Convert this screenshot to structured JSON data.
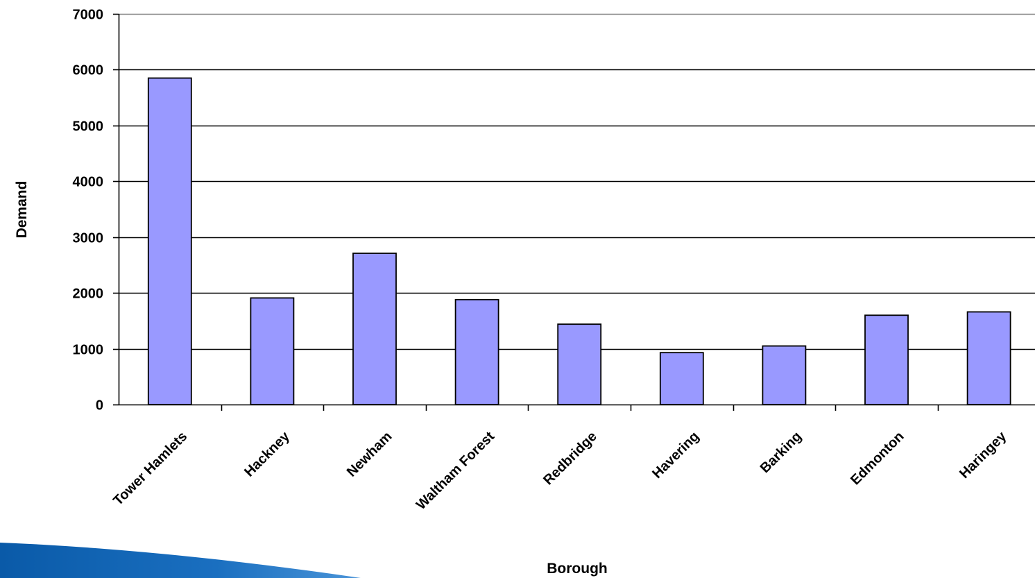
{
  "chart_data": {
    "type": "bar",
    "title": "",
    "xlabel": "Borough",
    "ylabel": "Demand",
    "categories": [
      "Tower Hamlets",
      "Hackney",
      "Newham",
      "Waltham Forest",
      "Redbridge",
      "Havering",
      "Barking",
      "Edmonton",
      "Haringey"
    ],
    "values": [
      5850,
      1910,
      2710,
      1880,
      1440,
      930,
      1050,
      1600,
      1660
    ],
    "ylim": [
      0,
      7000
    ],
    "yticks": [
      0,
      1000,
      2000,
      3000,
      4000,
      5000,
      6000,
      7000
    ],
    "grid": true,
    "legend": "none",
    "bar_color": "#9999ff",
    "bar_edge_color": "#000000",
    "decoration_color": "#0b5fb0"
  }
}
